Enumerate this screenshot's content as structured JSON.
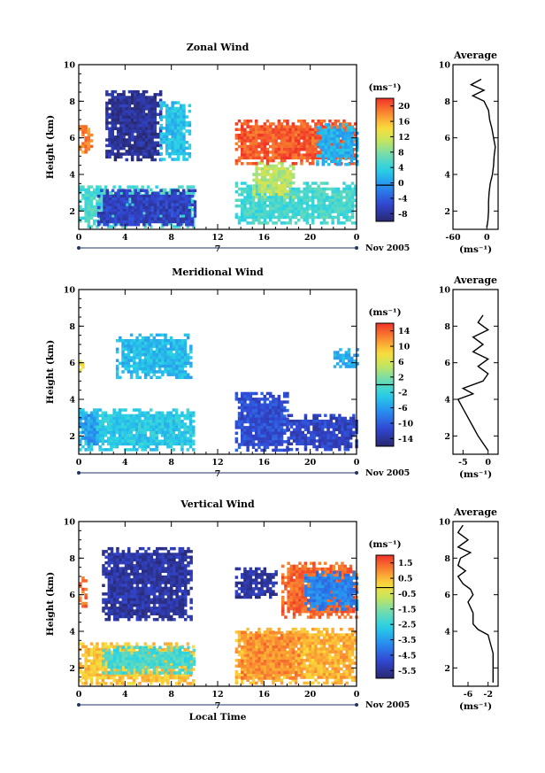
{
  "chart_data": [
    {
      "type": "heatmap",
      "title": "Zonal Wind",
      "ylabel": "Height (km)",
      "ylim": [
        1,
        10
      ],
      "yticks": [
        "2",
        "4",
        "6",
        "8",
        "10"
      ],
      "xlim": [
        0,
        24
      ],
      "xticks": [
        "0",
        "4",
        "8",
        "12",
        "16",
        "20",
        "0"
      ],
      "date_label": "7",
      "month_label": "Nov 2005",
      "colorbar_unit": "(ms⁻¹)",
      "colorbar_range": [
        -10,
        24
      ],
      "colorbar_ticks": [
        "20",
        "16",
        "12",
        "8",
        "4",
        "0",
        "-4",
        "-8"
      ],
      "regions": [
        {
          "x": [
            0,
            10
          ],
          "y": [
            1.2,
            3.4
          ],
          "value": 6
        },
        {
          "x": [
            1.6,
            10
          ],
          "y": [
            1.2,
            3.2
          ],
          "value": -6
        },
        {
          "x": [
            0,
            1.2
          ],
          "y": [
            5.3,
            6.7
          ],
          "value": 20
        },
        {
          "x": [
            2.3,
            7.0
          ],
          "y": [
            4.8,
            8.6
          ],
          "value": -8
        },
        {
          "x": [
            7.0,
            9.6
          ],
          "y": [
            4.8,
            8.0
          ],
          "value": 3
        },
        {
          "x": [
            13.5,
            24
          ],
          "y": [
            1.3,
            3.6
          ],
          "value": 6
        },
        {
          "x": [
            15.0,
            18.5
          ],
          "y": [
            2.8,
            4.7
          ],
          "value": 12
        },
        {
          "x": [
            13.5,
            24
          ],
          "y": [
            4.6,
            7.0
          ],
          "value": 22
        },
        {
          "x": [
            20.5,
            24
          ],
          "y": [
            4.6,
            6.8
          ],
          "value": 2
        }
      ],
      "profile": {
        "title": "Average",
        "xlim": [
          -60,
          20
        ],
        "xticks": [
          "-60",
          "0"
        ],
        "xlabel": "(ms⁻¹)",
        "heights": [
          1.1,
          1.5,
          2.0,
          2.5,
          3.0,
          3.5,
          4.0,
          4.5,
          5.0,
          5.5,
          6.0,
          6.5,
          7.0,
          7.5,
          8.0,
          8.3,
          8.6,
          8.9,
          9.2
        ],
        "values": [
          0,
          2,
          3,
          3,
          4,
          6,
          10,
          12,
          13,
          15,
          12,
          9,
          5,
          3,
          -5,
          -25,
          -5,
          -28,
          -10
        ]
      }
    },
    {
      "type": "heatmap",
      "title": "Meridional Wind",
      "ylabel": "Height (km)",
      "ylim": [
        1,
        10
      ],
      "yticks": [
        "2",
        "4",
        "6",
        "8",
        "10"
      ],
      "xlim": [
        0,
        24
      ],
      "xticks": [
        "0",
        "4",
        "8",
        "12",
        "16",
        "20",
        "0"
      ],
      "date_label": "7",
      "month_label": "Nov 2005",
      "colorbar_unit": "(ms⁻¹)",
      "colorbar_range": [
        -16,
        16
      ],
      "colorbar_ticks": [
        "14",
        "10",
        "6",
        "2",
        "-2",
        "-6",
        "-10",
        "-14"
      ],
      "regions": [
        {
          "x": [
            0,
            10
          ],
          "y": [
            1.2,
            3.5
          ],
          "value": -3
        },
        {
          "x": [
            0,
            1.5
          ],
          "y": [
            1.5,
            3.2
          ],
          "value": -6
        },
        {
          "x": [
            0,
            0.6
          ],
          "y": [
            5.6,
            6.3
          ],
          "value": 8
        },
        {
          "x": [
            3.2,
            9.6
          ],
          "y": [
            5.2,
            7.6
          ],
          "value": -4
        },
        {
          "x": [
            13.5,
            18.0
          ],
          "y": [
            1.3,
            4.4
          ],
          "value": -11
        },
        {
          "x": [
            18.0,
            24
          ],
          "y": [
            1.3,
            3.2
          ],
          "value": -12
        },
        {
          "x": [
            22.0,
            24
          ],
          "y": [
            5.8,
            6.8
          ],
          "value": -5
        }
      ],
      "profile": {
        "title": "Average",
        "xlim": [
          -7,
          2
        ],
        "xticks": [
          "-5",
          "0"
        ],
        "xlabel": "(ms⁻¹)",
        "heights": [
          1.2,
          1.6,
          2.0,
          2.5,
          3.0,
          3.5,
          4.0,
          4.3,
          4.6,
          5.0,
          5.4,
          5.8,
          6.2,
          6.6,
          7.0,
          7.4,
          7.8,
          8.2,
          8.6
        ],
        "values": [
          0,
          -1,
          -2,
          -3,
          -4,
          -5,
          -6,
          -3,
          -5,
          -1,
          0,
          -2,
          0,
          -3,
          -1,
          -3,
          0,
          -2,
          -1
        ]
      }
    },
    {
      "type": "heatmap",
      "title": "Vertical Wind",
      "ylabel": "Height (km)",
      "ylim": [
        1,
        10
      ],
      "yticks": [
        "2",
        "4",
        "6",
        "8",
        "10"
      ],
      "xlim": [
        0,
        24
      ],
      "xticks": [
        "0",
        "4",
        "8",
        "12",
        "16",
        "20",
        "0"
      ],
      "date_label": "7",
      "month_label": "Nov 2005",
      "xlabel": "Local Time",
      "colorbar_unit": "(ms⁻¹)",
      "colorbar_range": [
        -7,
        2.5
      ],
      "colorbar_ticks": [
        "1.5",
        "0.5",
        "-0.5",
        "-1.5",
        "-2.5",
        "-3.5",
        "-4.5",
        "-5.5"
      ],
      "regions": [
        {
          "x": [
            0,
            10
          ],
          "y": [
            1.1,
            3.4
          ],
          "value": 0.5
        },
        {
          "x": [
            2.0,
            10
          ],
          "y": [
            1.7,
            3.2
          ],
          "value": -2.5
        },
        {
          "x": [
            0,
            0.5
          ],
          "y": [
            5.3,
            7.0
          ],
          "value": 1.8
        },
        {
          "x": [
            2.0,
            9.7
          ],
          "y": [
            4.6,
            8.6
          ],
          "value": -6.3
        },
        {
          "x": [
            13.5,
            24
          ],
          "y": [
            1.2,
            4.2
          ],
          "value": 0.8
        },
        {
          "x": [
            14.0,
            19.0
          ],
          "y": [
            1.5,
            4.0
          ],
          "value": 1.3
        },
        {
          "x": [
            13.5,
            17.0
          ],
          "y": [
            5.8,
            7.5
          ],
          "value": -6.3
        },
        {
          "x": [
            17.5,
            24
          ],
          "y": [
            4.8,
            7.8
          ],
          "value": 1.8
        },
        {
          "x": [
            19.5,
            24
          ],
          "y": [
            5.2,
            7.3
          ],
          "value": -4.5
        }
      ],
      "profile": {
        "title": "Average",
        "xlim": [
          -9,
          0
        ],
        "xticks": [
          "-6",
          "-2"
        ],
        "xlabel": "(ms⁻¹)",
        "heights": [
          1.2,
          1.8,
          2.3,
          2.8,
          3.3,
          3.8,
          4.1,
          4.4,
          5.0,
          5.6,
          6.0,
          6.3,
          6.6,
          7.0,
          7.3,
          7.6,
          8.0,
          8.3,
          8.6,
          9.0,
          9.4,
          9.8
        ],
        "values": [
          -1,
          -1,
          -1,
          -1,
          -1.5,
          -2,
          -4,
          -5,
          -5,
          -6,
          -5,
          -5.5,
          -7,
          -8,
          -6.5,
          -8,
          -7.5,
          -5.5,
          -8,
          -6,
          -8,
          -7
        ]
      }
    }
  ]
}
